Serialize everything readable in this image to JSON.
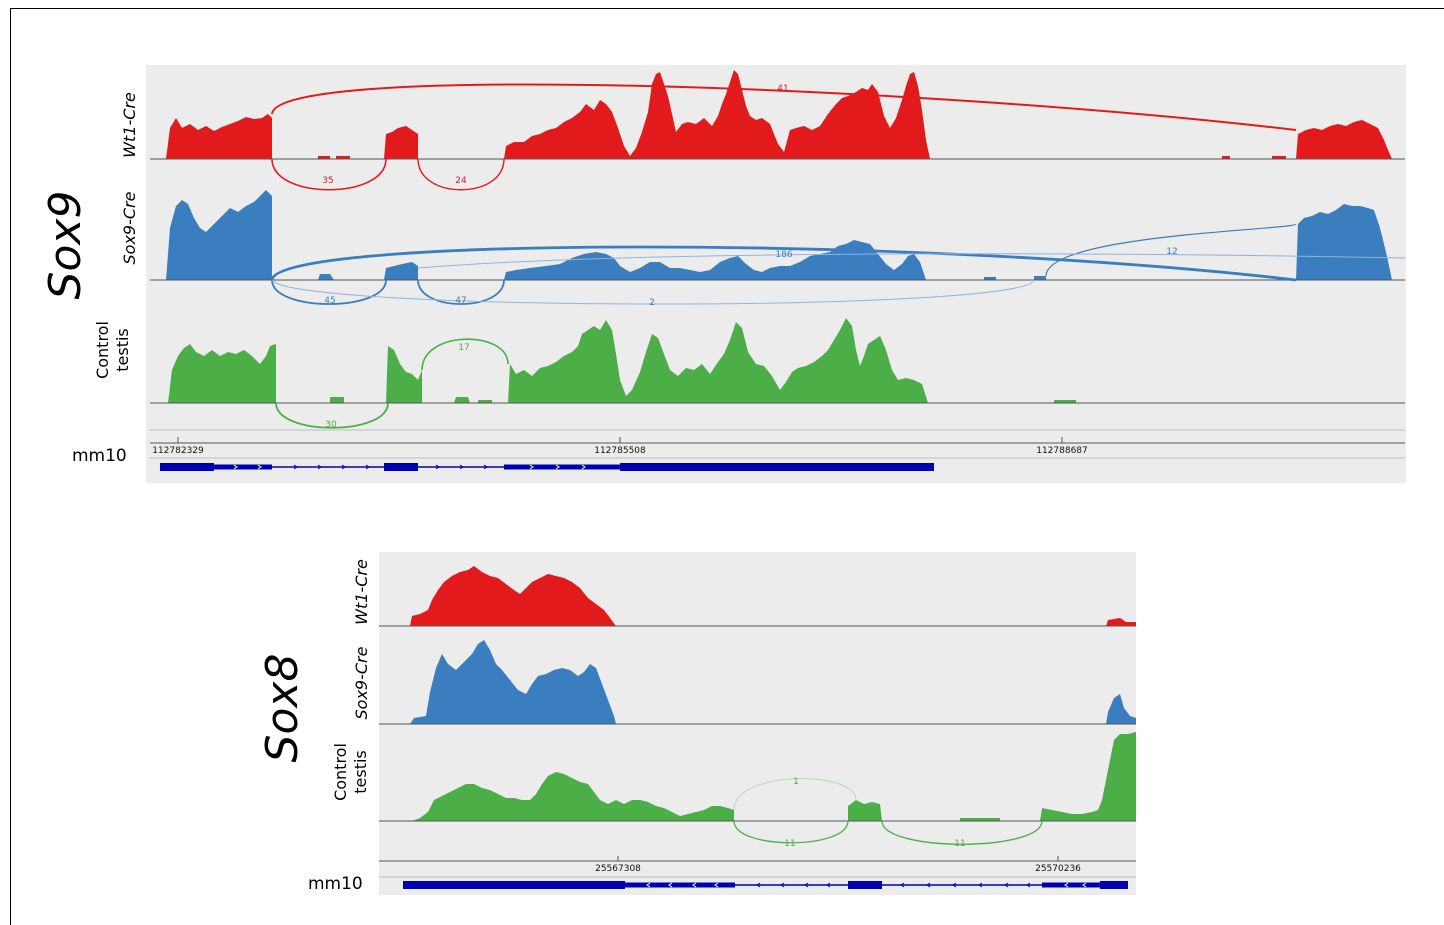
{
  "colors": {
    "wt1": "#e31a1c",
    "sox9": "#3a7ebf",
    "control": "#4cae47",
    "gene_model": "#0000b3",
    "panel_bg": "#ececec"
  },
  "panels": [
    {
      "id": "sox9",
      "gene": "Sox9",
      "genome": "mm10",
      "tracks": [
        {
          "id": "wt1",
          "label_lines": [
            "Wt1-Cre"
          ],
          "italic": true,
          "color_key": "wt1",
          "junction_labels": [
            "41",
            "35",
            "24"
          ]
        },
        {
          "id": "sox9",
          "label_lines": [
            "Sox9-Cre"
          ],
          "italic": true,
          "color_key": "sox9",
          "junction_labels": [
            "186",
            "12",
            "45",
            "47",
            "2"
          ]
        },
        {
          "id": "control",
          "label_lines": [
            "Control",
            "testis"
          ],
          "italic": false,
          "color_key": "control",
          "junction_labels": [
            "17",
            "30"
          ]
        }
      ],
      "ticks": [
        "112782329",
        "112785508",
        "112788687"
      ]
    },
    {
      "id": "sox8",
      "gene": "Sox8",
      "genome": "mm10",
      "tracks": [
        {
          "id": "wt1",
          "label_lines": [
            "Wt1-Cre"
          ],
          "italic": true,
          "color_key": "wt1",
          "junction_labels": []
        },
        {
          "id": "sox9",
          "label_lines": [
            "Sox9-Cre"
          ],
          "italic": true,
          "color_key": "sox9",
          "junction_labels": []
        },
        {
          "id": "control",
          "label_lines": [
            "Control",
            "testis"
          ],
          "italic": false,
          "color_key": "control",
          "junction_labels": [
            "1",
            "11",
            "11"
          ]
        }
      ],
      "ticks": [
        "25567308",
        "25570236"
      ]
    }
  ]
}
